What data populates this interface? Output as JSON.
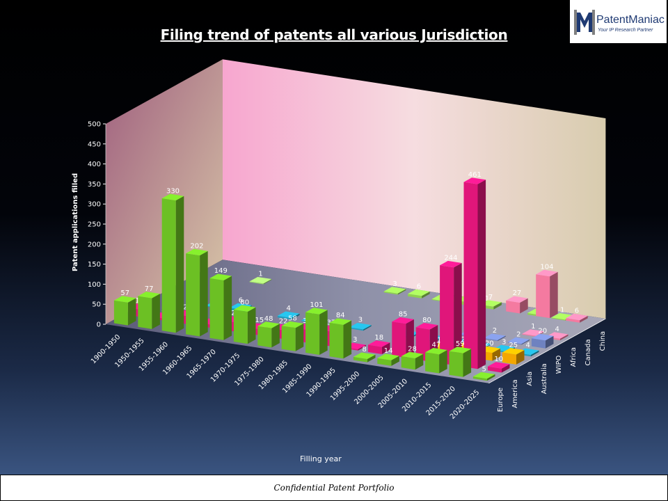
{
  "brand": {
    "name": "PatentManiac",
    "tagline": "Your IP Research Partner",
    "colors": {
      "mark_dark": "#1f3a73",
      "mark_light": "#7f7f7f"
    }
  },
  "footer": {
    "text": "Confidential Patent Portfolio"
  },
  "chart_data": {
    "type": "bar",
    "title": "Filing trend of patents all various Jurisdiction",
    "ylabel": "Patent applications filled",
    "xlabel": "Filling year",
    "ylim": [
      0,
      500
    ],
    "yticks": [
      0,
      50,
      100,
      150,
      200,
      250,
      300,
      350,
      400,
      450,
      500
    ],
    "grid": false,
    "categories": [
      "1900-1950",
      "1950-1955",
      "1955-1960",
      "1960-1965",
      "1965-1970",
      "1970-1975",
      "1975-1980",
      "1980-1985",
      "1985-1990",
      "1990-1995",
      "1995-2000",
      "2000-2005",
      "2005-2010",
      "2010-2015",
      "2015-2020",
      "2020-2025"
    ],
    "series_labels": [
      "Europe",
      "America",
      "Asia",
      "Australia",
      "WIPO",
      "Africa",
      "Canada",
      "China"
    ],
    "series": [
      {
        "values": [
          57,
          77,
          330,
          202,
          149,
          80,
          48,
          58,
          101,
          84,
          8,
          14,
          28,
          47,
          59,
          5
        ],
        "color": "#6cc024"
      },
      {
        "values": [
          18,
          5,
          20,
          8,
          23,
          15,
          22,
          32,
          37,
          3,
          18,
          85,
          80,
          244,
          461,
          10
        ],
        "color": "#e0167a"
      },
      {
        "values": [
          null,
          null,
          null,
          null,
          null,
          null,
          null,
          null,
          null,
          null,
          null,
          null,
          10,
          20,
          20,
          25
        ],
        "color": "#f4a700"
      },
      {
        "values": [
          null,
          null,
          2,
          6,
          null,
          4,
          2,
          null,
          3,
          null,
          3,
          2,
          3,
          2,
          3,
          4
        ],
        "color": "#1f9fc0"
      },
      {
        "values": [
          null,
          null,
          null,
          null,
          null,
          null,
          null,
          null,
          null,
          null,
          null,
          null,
          2,
          2,
          2,
          20
        ],
        "color": "#6f82c0"
      },
      {
        "values": [
          null,
          null,
          null,
          null,
          null,
          null,
          null,
          null,
          null,
          null,
          null,
          null,
          null,
          null,
          1,
          4
        ],
        "color": "#f47aa0"
      },
      {
        "values": [
          null,
          null,
          1,
          null,
          null,
          null,
          null,
          null,
          null,
          null,
          null,
          null,
          null,
          null,
          null,
          null
        ],
        "color": "#9ad36a"
      },
      {
        "values": [
          null,
          null,
          null,
          null,
          null,
          null,
          null,
          3,
          6,
          2,
          8,
          7,
          null,
          4,
          1,
          null
        ],
        "color": "#8fd14f"
      }
    ],
    "extra_back_bars": [
      {
        "category": "2020-2025",
        "row": 7,
        "value": 4,
        "label": "4",
        "color": "#8fd14f"
      },
      {
        "category": "2020-2025",
        "row": 7,
        "value": 1,
        "label": "1",
        "color": "#e77aa0"
      },
      {
        "category": "2020-2025",
        "row": 7,
        "value": 27,
        "label": "27",
        "color": "#f47aa0"
      },
      {
        "category": "2020-2025",
        "row": 7,
        "value": 104,
        "label": "104",
        "color": "#f47aa0"
      },
      {
        "category": "2020-2025",
        "row": 7,
        "value": 6,
        "label": "6",
        "color": "#f47aa0"
      }
    ],
    "legend": "none"
  }
}
